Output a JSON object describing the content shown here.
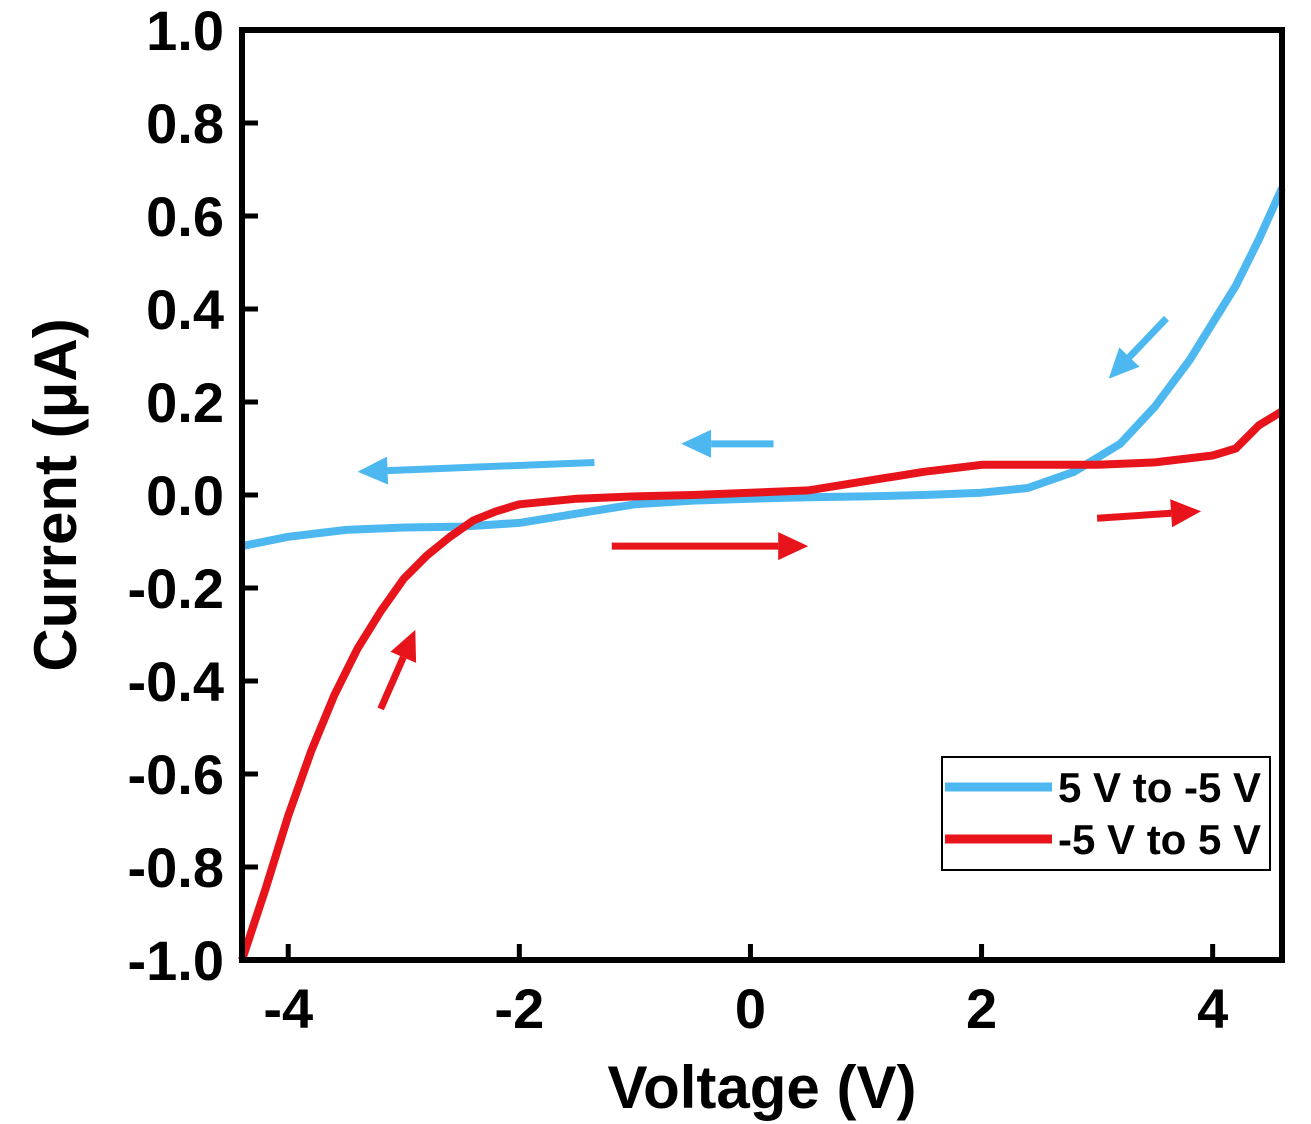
{
  "chart_data": {
    "type": "line",
    "xlabel": "Voltage (V)",
    "ylabel": "Current (μA)",
    "xlim": [
      -4.4,
      4.6
    ],
    "ylim": [
      -1.0,
      1.0
    ],
    "x_ticks": [
      "-4",
      "-2",
      "0",
      "2",
      "4"
    ],
    "y_ticks": [
      "1.0",
      "0.8",
      "0.6",
      "0.4",
      "0.2",
      "0.0",
      "-0.2",
      "-0.4",
      "-0.6",
      "-0.8",
      "-1.0"
    ],
    "grid": false,
    "legend_position": "bottom-right",
    "series": [
      {
        "name": "5 V to -5 V",
        "color": "#4db8f0",
        "x": [
          -4.4,
          -4.0,
          -3.5,
          -3.0,
          -2.5,
          -2.0,
          -1.5,
          -1.0,
          -0.5,
          0.0,
          0.5,
          1.0,
          1.5,
          2.0,
          2.4,
          2.8,
          3.0,
          3.2,
          3.5,
          3.8,
          4.0,
          4.2,
          4.4,
          4.6
        ],
        "y": [
          -0.11,
          -0.09,
          -0.075,
          -0.07,
          -0.068,
          -0.06,
          -0.04,
          -0.02,
          -0.012,
          -0.008,
          -0.005,
          -0.003,
          0.0,
          0.005,
          0.015,
          0.05,
          0.08,
          0.11,
          0.19,
          0.29,
          0.37,
          0.45,
          0.55,
          0.66
        ]
      },
      {
        "name": "-5 V to 5 V",
        "color": "#e8141b",
        "x": [
          -4.4,
          -4.2,
          -4.0,
          -3.8,
          -3.6,
          -3.4,
          -3.2,
          -3.0,
          -2.8,
          -2.6,
          -2.4,
          -2.2,
          -2.0,
          -1.5,
          -1.0,
          -0.5,
          0.0,
          0.5,
          1.0,
          1.5,
          2.0,
          2.5,
          3.0,
          3.5,
          4.0,
          4.2,
          4.4,
          4.6
        ],
        "y": [
          -1.0,
          -0.85,
          -0.69,
          -0.55,
          -0.43,
          -0.33,
          -0.25,
          -0.18,
          -0.13,
          -0.09,
          -0.055,
          -0.035,
          -0.02,
          -0.008,
          -0.003,
          0.0,
          0.005,
          0.01,
          0.03,
          0.05,
          0.065,
          0.065,
          0.065,
          0.07,
          0.085,
          0.1,
          0.15,
          0.18
        ]
      }
    ],
    "annotations": [
      {
        "shape": "arrow",
        "color": "#4db8f0",
        "from": [
          3.6,
          0.38
        ],
        "to": [
          3.1,
          0.25
        ]
      },
      {
        "shape": "arrow",
        "color": "#4db8f0",
        "from": [
          0.2,
          0.11
        ],
        "to": [
          -0.6,
          0.11
        ]
      },
      {
        "shape": "arrow",
        "color": "#4db8f0",
        "from": [
          -1.35,
          0.07
        ],
        "to": [
          -3.4,
          0.05
        ]
      },
      {
        "shape": "arrow",
        "color": "#e8141b",
        "from": [
          -3.2,
          -0.46
        ],
        "to": [
          -2.9,
          -0.29
        ]
      },
      {
        "shape": "arrow",
        "color": "#e8141b",
        "from": [
          -1.2,
          -0.11
        ],
        "to": [
          0.5,
          -0.11
        ]
      },
      {
        "shape": "arrow",
        "color": "#e8141b",
        "from": [
          3.0,
          -0.05
        ],
        "to": [
          3.9,
          -0.035
        ]
      }
    ]
  }
}
